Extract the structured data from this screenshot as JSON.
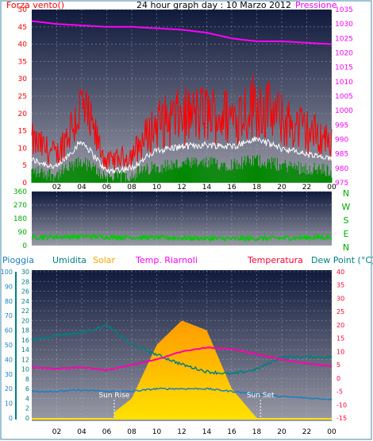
{
  "colors": {
    "wind": "#ff0000",
    "gust": "#ffffff",
    "avgwind": "#008800",
    "pressure": "#ff00ff",
    "winddir": "#00cc00",
    "humidity": "#008080",
    "solar": "#ffa500",
    "temp_feel": "#ff00ff",
    "temperature": "#ff0033",
    "dewpoint": "#1e7fbf",
    "rain_axis": "#008080",
    "frame": "#4488aa"
  },
  "top_panel": {
    "title": "24 hour graph day : 10 Marzo 2012",
    "left_label": "Forza vento()",
    "right_label": "Pressione",
    "x_ticks": [
      "02",
      "04",
      "06",
      "08",
      "10",
      "12",
      "14",
      "16",
      "18",
      "20",
      "22",
      "00"
    ],
    "left_ticks": [
      "0",
      "5",
      "10",
      "15",
      "20",
      "25",
      "30",
      "35",
      "40",
      "45",
      "50"
    ],
    "right_ticks": [
      "975",
      "980",
      "985",
      "990",
      "995",
      "1000",
      "1005",
      "1010",
      "1015",
      "1020",
      "1025",
      "1030",
      "1035"
    ]
  },
  "mid_panel": {
    "left_ticks": [
      "0",
      "90",
      "180",
      "270",
      "360"
    ],
    "direction_letters": [
      "N",
      "W",
      "S",
      "E",
      "N"
    ]
  },
  "bottom_panel": {
    "header": {
      "rain": "Pioggia",
      "humidity": "Umidita",
      "solar": "Solar",
      "feel": "Temp. Riarnoli",
      "temperature": "Temperatura",
      "dewpoint": "Dew Point (°C)"
    },
    "rain_ticks": [
      "0",
      "10",
      "20",
      "30",
      "40",
      "50",
      "60",
      "70",
      "80",
      "90",
      "100"
    ],
    "humidity_ticks": [
      "0",
      "2",
      "4",
      "6",
      "8",
      "10",
      "12",
      "14",
      "16",
      "18",
      "20",
      "22",
      "24",
      "26",
      "28",
      "30"
    ],
    "temp_ticks": [
      "-15",
      "-10",
      "-5",
      "0",
      "5",
      "10",
      "15",
      "20",
      "25",
      "30",
      "35",
      "40"
    ],
    "sun_rise": "Sun Rise",
    "sun_set": "Sun Set",
    "x_ticks": [
      "02",
      "04",
      "06",
      "08",
      "10",
      "12",
      "14",
      "16",
      "18",
      "20",
      "22",
      "00"
    ]
  },
  "chart_data": [
    {
      "type": "line",
      "ylim_left": [
        0,
        50
      ],
      "ylim_right": [
        975,
        1035
      ],
      "x_hours": [
        0,
        2,
        4,
        6,
        8,
        10,
        12,
        14,
        16,
        18,
        20,
        22,
        24
      ],
      "series": [
        {
          "name": "Forza vento",
          "values": [
            12,
            8,
            22,
            6,
            8,
            17,
            19,
            20,
            19,
            23,
            18,
            15,
            12
          ]
        },
        {
          "name": "Pressione",
          "values": [
            1031,
            1030,
            1029.5,
            1029,
            1029,
            1028.5,
            1028,
            1027,
            1025,
            1024,
            1024,
            1023.5,
            1023
          ]
        }
      ]
    },
    {
      "type": "line",
      "ylim": [
        0,
        360
      ],
      "x_hours": [
        0,
        4,
        8,
        12,
        16,
        20,
        24
      ],
      "values": [
        55,
        60,
        55,
        50,
        45,
        50,
        55
      ]
    },
    {
      "type": "line",
      "ylim_humidity": [
        0,
        30
      ],
      "ylim_temp": [
        -15,
        40
      ],
      "x_hours": [
        0,
        2,
        4,
        6,
        8,
        10,
        12,
        14,
        16,
        18,
        20,
        22,
        24
      ],
      "series": [
        {
          "name": "Umidita",
          "values": [
            16,
            17,
            17.5,
            19,
            15,
            13,
            11,
            9.5,
            9,
            10,
            12.5,
            12.5,
            12.5
          ]
        },
        {
          "name": "Temp. Riarnoli",
          "values": [
            4,
            3.5,
            4,
            3,
            5,
            7,
            10,
            11.5,
            11,
            9,
            7,
            5.5,
            4.5
          ]
        },
        {
          "name": "Temperatura",
          "values": [
            4,
            3.5,
            4,
            3,
            5,
            7,
            10,
            11.5,
            11,
            9,
            7,
            5.5,
            4.5
          ]
        },
        {
          "name": "Dew Point (°C)",
          "values": [
            -5,
            -5,
            -4.5,
            -5,
            -5,
            -4,
            -4,
            -4,
            -5,
            -6,
            -7,
            -7.5,
            -8
          ]
        },
        {
          "name": "Solar",
          "values": [
            0,
            0,
            0,
            0,
            4,
            15,
            20,
            18,
            6,
            0,
            0,
            0,
            0
          ]
        }
      ],
      "sun_rise_hour": 6.6,
      "sun_set_hour": 18.3
    }
  ]
}
